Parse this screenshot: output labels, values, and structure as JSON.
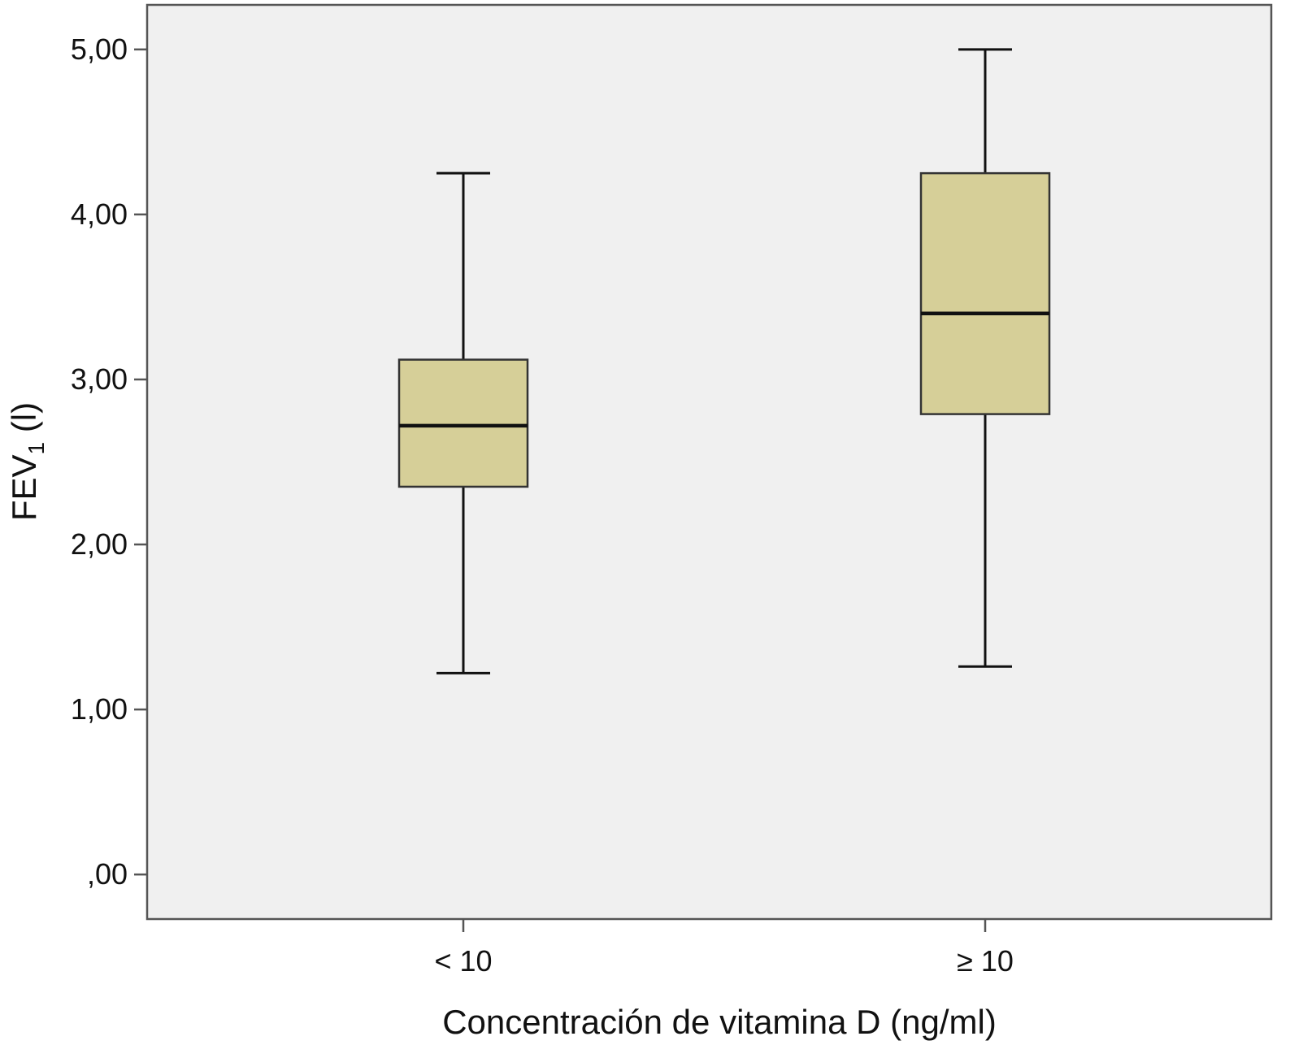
{
  "chart_data": {
    "type": "boxplot",
    "title": "",
    "xlabel": "Concentración de vitamina D (ng/ml)",
    "ylabel_main": "FEV",
    "ylabel_sub": "1",
    "ylabel_unit": " (l)",
    "ylim": [
      -0.27,
      5.27
    ],
    "yticks": [
      0,
      1,
      2,
      3,
      4,
      5
    ],
    "ytick_labels": [
      ",00",
      "1,00",
      "2,00",
      "3,00",
      "4,00",
      "5,00"
    ],
    "categories": [
      "< 10",
      "≥ 10"
    ],
    "boxes": [
      {
        "category": "< 10",
        "whisker_low": 1.22,
        "q1": 2.35,
        "median": 2.72,
        "q3": 3.12,
        "whisker_high": 4.25
      },
      {
        "category": "≥ 10",
        "whisker_low": 1.26,
        "q1": 2.79,
        "median": 3.4,
        "q3": 4.25,
        "whisker_high": 5.0
      }
    ],
    "grid": false,
    "colors": {
      "box_fill": "#d6cf98",
      "plot_bg": "#f0f0f0",
      "stroke": "#111111",
      "frame": "#555555"
    }
  }
}
